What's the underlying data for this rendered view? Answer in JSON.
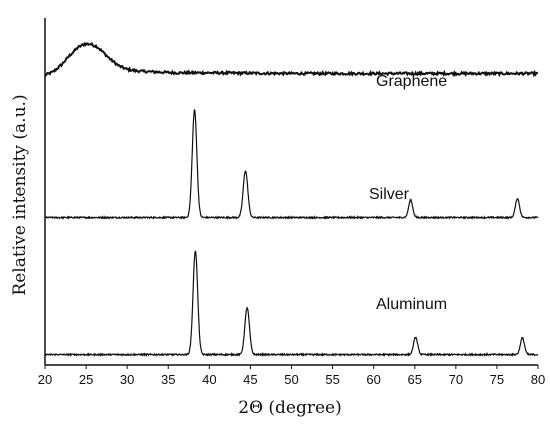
{
  "chart_data": {
    "type": "line",
    "title": "",
    "xlabel": "2Θ (degree)",
    "ylabel": "Relative intensity (a.u.)",
    "xlim": [
      20,
      80
    ],
    "x_ticks": [
      20,
      25,
      30,
      35,
      40,
      45,
      50,
      55,
      60,
      65,
      70,
      75,
      80
    ],
    "y_ticks": [],
    "grid": false,
    "legend": "none",
    "series": [
      {
        "name": "Graphene",
        "baseline": 0.84,
        "x": [
          20,
          21,
          22,
          23,
          24,
          24.8,
          25.5,
          26.3,
          27,
          28,
          29,
          30,
          31,
          32,
          33,
          34,
          35,
          36,
          40,
          45,
          50,
          55,
          60,
          65,
          70,
          75,
          80
        ],
        "y": [
          0.835,
          0.845,
          0.865,
          0.892,
          0.915,
          0.925,
          0.925,
          0.918,
          0.903,
          0.88,
          0.862,
          0.852,
          0.848,
          0.846,
          0.845,
          0.844,
          0.843,
          0.842,
          0.842,
          0.841,
          0.84,
          0.84,
          0.84,
          0.84,
          0.84,
          0.84,
          0.84
        ]
      },
      {
        "name": "Silver",
        "baseline": 0.425,
        "peaks": [
          {
            "x": 38.2,
            "height": 0.31,
            "width": 0.28
          },
          {
            "x": 44.4,
            "height": 0.135,
            "width": 0.28
          },
          {
            "x": 64.5,
            "height": 0.05,
            "width": 0.25
          },
          {
            "x": 77.5,
            "height": 0.055,
            "width": 0.25
          }
        ]
      },
      {
        "name": "Aluminum",
        "baseline": 0.03,
        "peaks": [
          {
            "x": 38.3,
            "height": 0.3,
            "width": 0.28
          },
          {
            "x": 44.6,
            "height": 0.135,
            "width": 0.28
          },
          {
            "x": 65.1,
            "height": 0.05,
            "width": 0.25
          },
          {
            "x": 78.1,
            "height": 0.048,
            "width": 0.25
          }
        ]
      }
    ]
  }
}
